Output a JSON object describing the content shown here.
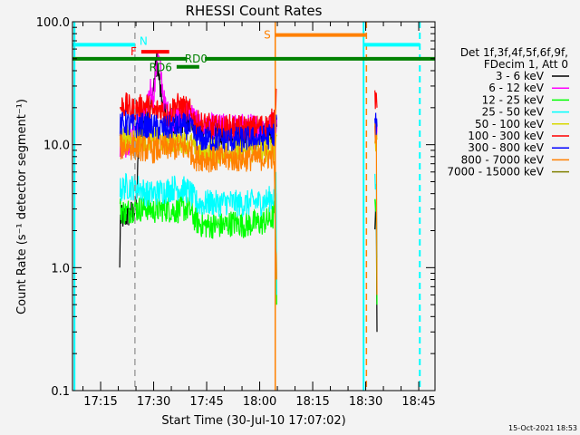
{
  "chart_data": {
    "type": "line",
    "title": "RHESSI Count Rates",
    "xlabel": "Start Time (30-Jul-10 17:07:02)",
    "ylabel": "Count Rate (s⁻¹ detector segment⁻¹)",
    "x_units": "minutes after 17:00 UT",
    "xlim": [
      7.04,
      109.6
    ],
    "ylim": [
      0.1,
      100
    ],
    "yscale": "log",
    "x_ticks": [
      {
        "value": 15,
        "label": "17:15"
      },
      {
        "value": 30,
        "label": "17:30"
      },
      {
        "value": 45,
        "label": "17:45"
      },
      {
        "value": 60,
        "label": "18:00"
      },
      {
        "value": 75,
        "label": "18:15"
      },
      {
        "value": 90,
        "label": "18:30"
      },
      {
        "value": 105,
        "label": "18:45"
      }
    ],
    "y_ticks": [
      {
        "value": 100,
        "label": "100.0"
      },
      {
        "value": 10,
        "label": "10.0"
      },
      {
        "value": 1,
        "label": "1.0"
      },
      {
        "value": 0.1,
        "label": "0.1"
      }
    ],
    "legend": {
      "placement": "right",
      "header": [
        "Det 1f,3f,4f,5f,6f,9f,",
        "FDecim 1, Att 0"
      ]
    },
    "series": [
      {
        "name": "3 - 6 keV",
        "color": "#000000",
        "segments": [
          [
            [
              20.4,
              1.0
            ],
            [
              20.6,
              2.5
            ],
            [
              22,
              2.6
            ],
            [
              24,
              2.8
            ],
            [
              25,
              3.0
            ],
            [
              26,
              12
            ],
            [
              27,
              16
            ],
            [
              28,
              17
            ],
            [
              29,
              18
            ],
            [
              30,
              30
            ],
            [
              31,
              50
            ],
            [
              32,
              25
            ],
            [
              33,
              18
            ],
            [
              34,
              16
            ],
            [
              36,
              15
            ],
            [
              38,
              15
            ],
            [
              40,
              16
            ],
            [
              42,
              14
            ],
            [
              44,
              13
            ],
            [
              46,
              13
            ],
            [
              48,
              13
            ],
            [
              50,
              12.5
            ],
            [
              52,
              12.5
            ],
            [
              54,
              12
            ],
            [
              56,
              12
            ],
            [
              58,
              12
            ],
            [
              60,
              12
            ],
            [
              62,
              12
            ],
            [
              64,
              13
            ],
            [
              64.8,
              14
            ]
          ],
          [
            [
              92.6,
              2.5
            ],
            [
              93.0,
              2.8
            ],
            [
              93.2,
              0.3
            ]
          ]
        ]
      },
      {
        "name": "6 - 12 keV",
        "color": "#ff00ff",
        "segments": [
          [
            [
              20.5,
              10
            ],
            [
              22,
              10
            ],
            [
              24,
              11
            ],
            [
              26,
              16
            ],
            [
              28,
              18
            ],
            [
              29,
              30
            ],
            [
              30,
              22
            ],
            [
              31,
              55
            ],
            [
              32,
              40
            ],
            [
              33,
              22
            ],
            [
              34,
              18
            ],
            [
              36,
              16
            ],
            [
              38,
              17
            ],
            [
              40,
              19
            ],
            [
              42,
              15
            ],
            [
              44,
              14
            ],
            [
              46,
              14
            ],
            [
              48,
              14
            ],
            [
              50,
              14
            ],
            [
              52,
              14
            ],
            [
              54,
              14
            ],
            [
              56,
              14
            ],
            [
              58,
              14
            ],
            [
              60,
              14
            ],
            [
              62,
              14
            ],
            [
              64,
              15
            ],
            [
              64.8,
              16
            ]
          ],
          [
            [
              92.6,
              13
            ],
            [
              93.2,
              14
            ]
          ]
        ]
      },
      {
        "name": "12 - 25 keV",
        "color": "#00ff00",
        "segments": [
          [
            [
              20.5,
              3.0
            ],
            [
              22,
              2.8
            ],
            [
              24,
              3.0
            ],
            [
              26,
              3.0
            ],
            [
              28,
              3.1
            ],
            [
              30,
              2.9
            ],
            [
              32,
              3.0
            ],
            [
              34,
              3.0
            ],
            [
              36,
              2.9
            ],
            [
              38,
              3.0
            ],
            [
              40,
              3.0
            ],
            [
              42,
              2.4
            ],
            [
              44,
              2.2
            ],
            [
              46,
              2.2
            ],
            [
              48,
              2.2
            ],
            [
              50,
              2.2
            ],
            [
              52,
              2.3
            ],
            [
              54,
              2.3
            ],
            [
              56,
              2.2
            ],
            [
              58,
              2.3
            ],
            [
              60,
              2.3
            ],
            [
              62,
              2.4
            ],
            [
              64,
              2.6
            ],
            [
              64.6,
              4
            ],
            [
              64.8,
              0.5
            ]
          ],
          [
            [
              92.6,
              3.3
            ],
            [
              93.0,
              3.6
            ],
            [
              93.2,
              0.5
            ]
          ]
        ]
      },
      {
        "name": "25 - 50 keV",
        "color": "#00ffff",
        "segments": [
          [
            [
              20.5,
              4.2
            ],
            [
              22,
              4.6
            ],
            [
              24,
              4.5
            ],
            [
              26,
              4.5
            ],
            [
              28,
              4.0
            ],
            [
              30,
              4.0
            ],
            [
              32,
              4.2
            ],
            [
              34,
              4.3
            ],
            [
              36,
              4.5
            ],
            [
              38,
              4.4
            ],
            [
              40,
              4.2
            ],
            [
              42,
              3.4
            ],
            [
              44,
              3.3
            ],
            [
              46,
              3.4
            ],
            [
              48,
              3.3
            ],
            [
              50,
              3.4
            ],
            [
              52,
              3.4
            ],
            [
              54,
              3.3
            ],
            [
              56,
              3.3
            ],
            [
              58,
              3.4
            ],
            [
              60,
              3.4
            ],
            [
              62,
              3.5
            ],
            [
              64,
              3.8
            ],
            [
              64.6,
              6
            ],
            [
              64.8,
              0.6
            ]
          ],
          [
            [
              92.6,
              4.6
            ],
            [
              93.0,
              4.8
            ],
            [
              93.2,
              1.2
            ]
          ]
        ]
      },
      {
        "name": "50 - 100 keV",
        "color": "#d8d800",
        "segments": [
          [
            [
              20.5,
              11
            ],
            [
              22,
              11.5
            ],
            [
              24,
              11
            ],
            [
              26,
              11
            ],
            [
              28,
              11.5
            ],
            [
              30,
              11
            ],
            [
              32,
              11
            ],
            [
              34,
              10.5
            ],
            [
              36,
              10.5
            ],
            [
              38,
              11
            ],
            [
              40,
              10.5
            ],
            [
              42,
              9
            ],
            [
              44,
              9
            ],
            [
              46,
              8.8
            ],
            [
              48,
              8.8
            ],
            [
              50,
              9
            ],
            [
              52,
              9
            ],
            [
              54,
              8.8
            ],
            [
              56,
              9
            ],
            [
              58,
              9
            ],
            [
              60,
              9
            ],
            [
              62,
              9.2
            ],
            [
              64,
              9.5
            ],
            [
              64.8,
              12
            ]
          ],
          [
            [
              92.6,
              11
            ],
            [
              93.2,
              11
            ]
          ]
        ]
      },
      {
        "name": "100 - 300 keV",
        "color": "#ff0000",
        "segments": [
          [
            [
              20.5,
              20
            ],
            [
              22,
              21
            ],
            [
              24,
              19
            ],
            [
              26,
              20
            ],
            [
              28,
              21
            ],
            [
              30,
              18
            ],
            [
              32,
              20
            ],
            [
              34,
              17
            ],
            [
              36,
              21
            ],
            [
              38,
              20
            ],
            [
              40,
              19
            ],
            [
              42,
              15
            ],
            [
              44,
              14.5
            ],
            [
              46,
              14
            ],
            [
              48,
              13.5
            ],
            [
              50,
              13.5
            ],
            [
              52,
              14
            ],
            [
              54,
              13.5
            ],
            [
              56,
              13.5
            ],
            [
              58,
              13.5
            ],
            [
              60,
              14
            ],
            [
              62,
              14
            ],
            [
              64,
              16
            ],
            [
              64.8,
              28
            ]
          ],
          [
            [
              92.6,
              24
            ],
            [
              93.0,
              26
            ],
            [
              93.2,
              20
            ]
          ]
        ]
      },
      {
        "name": "300 - 800 keV",
        "color": "#0000ff",
        "segments": [
          [
            [
              20.5,
              14
            ],
            [
              22,
              15
            ],
            [
              24,
              14
            ],
            [
              26,
              14.5
            ],
            [
              28,
              14
            ],
            [
              30,
              14
            ],
            [
              32,
              13.5
            ],
            [
              34,
              13.5
            ],
            [
              36,
              14
            ],
            [
              38,
              14
            ],
            [
              40,
              14
            ],
            [
              42,
              11.5
            ],
            [
              44,
              11
            ],
            [
              46,
              11
            ],
            [
              48,
              11
            ],
            [
              50,
              11
            ],
            [
              52,
              11
            ],
            [
              54,
              11
            ],
            [
              56,
              11
            ],
            [
              58,
              11
            ],
            [
              60,
              11.2
            ],
            [
              62,
              11.5
            ],
            [
              64,
              12
            ],
            [
              64.8,
              16
            ]
          ],
          [
            [
              92.6,
              15
            ],
            [
              93.2,
              14
            ]
          ]
        ]
      },
      {
        "name": "800 - 7000 keV",
        "color": "#ff8000",
        "segments": [
          [
            [
              20.5,
              9.5
            ],
            [
              22,
              9.8
            ],
            [
              24,
              9.5
            ],
            [
              26,
              9.5
            ],
            [
              28,
              9.2
            ],
            [
              30,
              9.0
            ],
            [
              32,
              9.2
            ],
            [
              34,
              9.5
            ],
            [
              36,
              9.5
            ],
            [
              38,
              9.5
            ],
            [
              40,
              9.2
            ],
            [
              42,
              7.8
            ],
            [
              44,
              7.8
            ],
            [
              46,
              7.6
            ],
            [
              48,
              7.6
            ],
            [
              50,
              7.6
            ],
            [
              52,
              7.7
            ],
            [
              54,
              7.6
            ],
            [
              56,
              7.7
            ],
            [
              58,
              7.8
            ],
            [
              60,
              7.8
            ],
            [
              62,
              7.9
            ],
            [
              64,
              8.2
            ],
            [
              64.8,
              0.8
            ]
          ],
          [
            [
              92.6,
              12
            ],
            [
              93.0,
              12
            ],
            [
              93.2,
              0.6
            ]
          ]
        ]
      },
      {
        "name": "7000 - 15000 keV",
        "color": "#808000",
        "segments": []
      }
    ],
    "annotations": {
      "vlines": [
        {
          "x": 7.6,
          "color": "#00ffff",
          "style": "solid"
        },
        {
          "x": 24.7,
          "color": "#a0a0a0",
          "style": "dashed"
        },
        {
          "x": 64.4,
          "color": "#ff8000",
          "style": "solid"
        },
        {
          "x": 89.4,
          "color": "#00ffff",
          "style": "solid"
        },
        {
          "x": 90.2,
          "color": "#ff8000",
          "style": "dashed"
        },
        {
          "x": 105.3,
          "color": "#00ffff",
          "style": "dashed"
        }
      ],
      "bars": [
        {
          "label": "N",
          "color": "#00ffff",
          "x0": 7.04,
          "x1": 24.7,
          "y": 65,
          "label_side": "right"
        },
        {
          "label": "",
          "color": "#00ffff",
          "x0": 89.4,
          "x1": 105.3,
          "y": 65
        },
        {
          "label": "F",
          "color": "#ff0000",
          "x0": 26.5,
          "x1": 34.4,
          "y": 57,
          "label_side": "left"
        },
        {
          "label": "RD0",
          "color": "#008000",
          "x0": 7.04,
          "x1": 109.6,
          "y": 50,
          "label_side": "inline"
        },
        {
          "label": "RD6",
          "color": "#008000",
          "x0": 36.5,
          "x1": 42.9,
          "y": 43,
          "label_side": "left"
        },
        {
          "label": "S",
          "color": "#ff8000",
          "x0": 64.4,
          "x1": 90.2,
          "y": 78,
          "label_side": "left"
        }
      ]
    }
  },
  "footer": {
    "timestamp": "15-Oct-2021 18:53"
  }
}
